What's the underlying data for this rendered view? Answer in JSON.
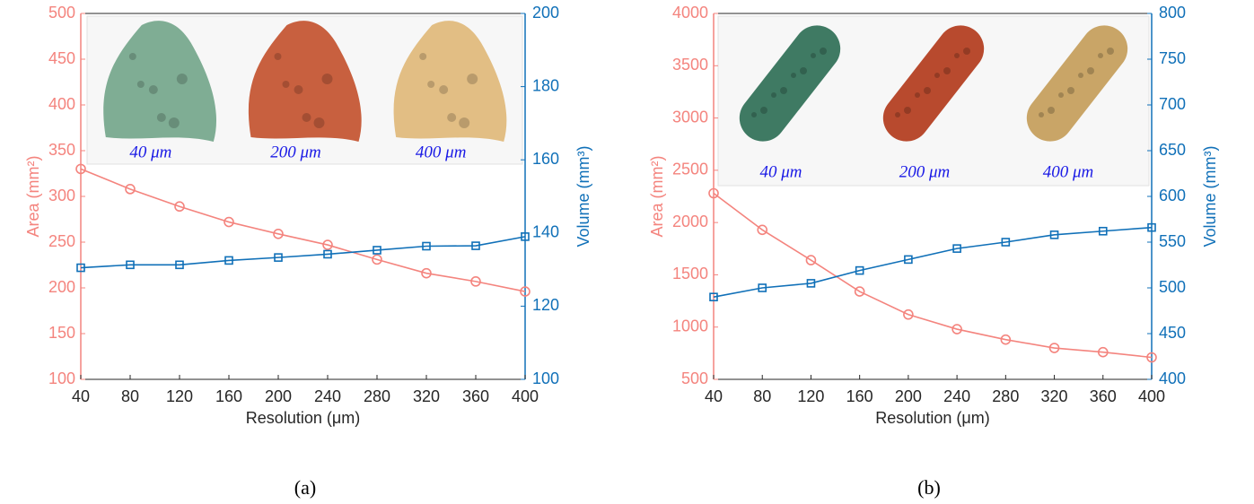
{
  "chart_data": [
    {
      "type": "line",
      "caption": "(a)",
      "xlabel": "Resolution (μm)",
      "ylabel": "Area (mm²)",
      "y2label": "Volume (mm³)",
      "insets": [
        "40 μm",
        "200 μm",
        "400 μm"
      ],
      "x": [
        40,
        80,
        120,
        160,
        200,
        240,
        280,
        320,
        360,
        400
      ],
      "xlim": [
        40,
        400
      ],
      "xticks": [
        40,
        80,
        120,
        160,
        200,
        240,
        280,
        320,
        360,
        400
      ],
      "ylim": [
        100,
        500
      ],
      "yticks": [
        100,
        150,
        200,
        250,
        300,
        350,
        400,
        450,
        500
      ],
      "y2lim": [
        100,
        200
      ],
      "y2ticks": [
        100,
        120,
        140,
        160,
        180,
        200
      ],
      "series": [
        {
          "color": "#f4847e",
          "marker": "circle",
          "values": [
            330,
            308,
            289,
            272,
            259,
            247,
            231,
            216,
            207,
            196
          ]
        },
        {
          "color": "#1070b8",
          "marker": "square",
          "axis": "y2",
          "values": [
            130.5,
            131.3,
            131.3,
            132.5,
            133.3,
            134.2,
            135.3,
            136.4,
            136.5,
            139
          ]
        }
      ]
    },
    {
      "type": "line",
      "caption": "(b)",
      "xlabel": "Resolution (μm)",
      "ylabel": "Area (mm²)",
      "y2label": "Volume (mm³)",
      "insets": [
        "40 μm",
        "200 μm",
        "400 μm"
      ],
      "x": [
        40,
        80,
        120,
        160,
        200,
        240,
        280,
        320,
        360,
        400
      ],
      "xlim": [
        40,
        400
      ],
      "xticks": [
        40,
        80,
        120,
        160,
        200,
        240,
        280,
        320,
        360,
        400
      ],
      "ylim": [
        500,
        4000
      ],
      "yticks": [
        500,
        1000,
        1500,
        2000,
        2500,
        3000,
        3500,
        4000
      ],
      "y2lim": [
        400,
        800
      ],
      "y2ticks": [
        400,
        450,
        500,
        550,
        600,
        650,
        700,
        750,
        800
      ],
      "series": [
        {
          "color": "#f4847e",
          "marker": "circle",
          "values": [
            2280,
            1930,
            1640,
            1340,
            1120,
            980,
            880,
            800,
            760,
            710
          ]
        },
        {
          "color": "#1070b8",
          "marker": "square",
          "axis": "y2",
          "values": [
            490,
            500,
            505,
            519,
            531,
            543,
            550,
            558,
            562,
            566
          ]
        }
      ]
    }
  ]
}
